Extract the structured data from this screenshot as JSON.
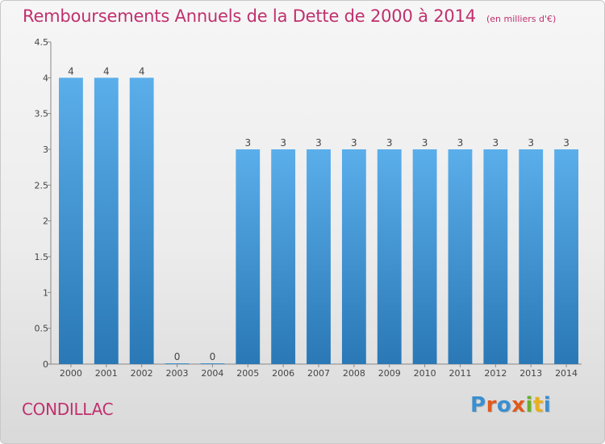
{
  "header": {
    "title": "Remboursements Annuels de la Dette de 2000 à 2014",
    "subtitle": "(en milliers d'€)"
  },
  "footer": {
    "commune": "CONDILLAC",
    "logo_text": "Proxiti"
  },
  "colors": {
    "accent": "#c0306e",
    "bar_top": "#5aaeea",
    "bar_bottom": "#2a78b6",
    "logo": [
      "#3a8fd0",
      "#e05a1e",
      "#3a8fd0",
      "#e05a1e",
      "#6ab02a",
      "#e8b020",
      "#3a8fd0"
    ]
  },
  "chart_data": {
    "type": "bar",
    "categories": [
      "2000",
      "2001",
      "2002",
      "2003",
      "2004",
      "2005",
      "2006",
      "2007",
      "2008",
      "2009",
      "2010",
      "2011",
      "2012",
      "2013",
      "2014"
    ],
    "values": [
      4,
      4,
      4,
      0,
      0,
      3,
      3,
      3,
      3,
      3,
      3,
      3,
      3,
      3,
      3
    ],
    "data_labels": [
      "4",
      "4",
      "4",
      "0",
      "0",
      "3",
      "3",
      "3",
      "3",
      "3",
      "3",
      "3",
      "3",
      "3",
      "3"
    ],
    "title": "Remboursements Annuels de la Dette de 2000 à 2014",
    "subtitle": "(en milliers d'€)",
    "ylim": [
      0,
      4.5
    ],
    "yticks": [
      0,
      0.5,
      1,
      1.5,
      2,
      2.5,
      3,
      3.5,
      4,
      4.5
    ],
    "ytick_labels": [
      "0",
      "0.5",
      "1",
      "1.5",
      "2",
      "2.5",
      "3",
      "3.5",
      "4",
      "4.5"
    ],
    "grid": false,
    "legend": "none"
  }
}
